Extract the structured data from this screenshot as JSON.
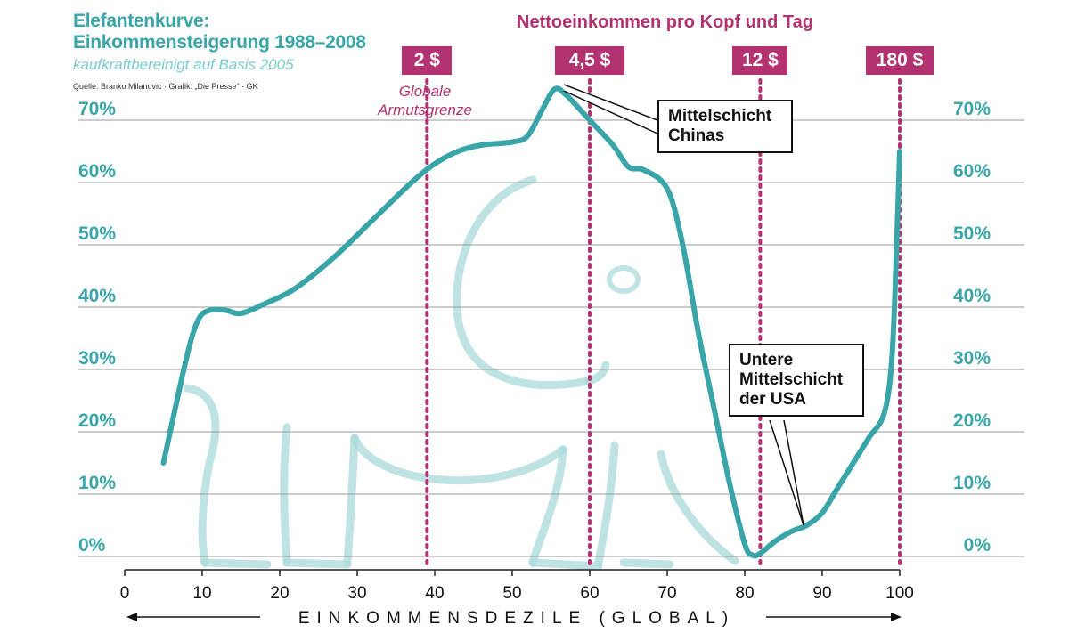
{
  "header": {
    "title_line1": "Elefantenkurve:",
    "title_line2": "Einkommensteigerung 1988–2008",
    "subtitle": "kaufkraftbereinigt auf Basis 2005",
    "source": "Quelle: Branko Milanovic · Grafik: „Die Presse“ · GK"
  },
  "income_header": "Nettoeinkommen pro Kopf und Tag",
  "income_markers": [
    {
      "label": "2 $",
      "x": 39
    },
    {
      "label": "4,5 $",
      "x": 60
    },
    {
      "label": "12 $",
      "x": 82
    },
    {
      "label": "180 $",
      "x": 100
    }
  ],
  "poverty_label": "Globale Armutsgrenze",
  "callouts": {
    "china": "Mittelschicht Chinas",
    "usa": "Untere Mittelschicht der USA"
  },
  "colors": {
    "curve": "#3aa5a8",
    "accent": "#b2336f",
    "elephant": "#a9d9da",
    "grid": "#9a9a9a"
  },
  "chart_data": {
    "type": "line",
    "title": "Elefantenkurve: Einkommensteigerung 1988–2008",
    "subtitle": "kaufkraftbereinigt auf Basis 2005",
    "xlabel": "EINKOMMENSDEZILE (GLOBAL)",
    "ylabel": "",
    "xlim": [
      0,
      100
    ],
    "ylim": [
      0,
      70
    ],
    "xticks": [
      0,
      10,
      20,
      30,
      40,
      50,
      60,
      70,
      80,
      90,
      100
    ],
    "yticks": [
      0,
      10,
      20,
      30,
      40,
      50,
      60,
      70
    ],
    "xtick_labels": [
      "0",
      "10",
      "20",
      "30",
      "40",
      "50",
      "60",
      "70",
      "80",
      "90",
      "100"
    ],
    "ytick_labels": [
      "0%",
      "10%",
      "20%",
      "30%",
      "40%",
      "50%",
      "60%",
      "70%"
    ],
    "grid": true,
    "series": [
      {
        "points": [
          [
            5,
            15
          ],
          [
            8,
            32
          ],
          [
            9.5,
            38
          ],
          [
            11,
            39.5
          ],
          [
            13,
            39.5
          ],
          [
            15,
            39
          ],
          [
            18,
            40.5
          ],
          [
            22,
            43
          ],
          [
            27,
            48
          ],
          [
            32,
            54
          ],
          [
            37,
            60
          ],
          [
            40,
            63
          ],
          [
            43,
            65
          ],
          [
            46,
            66
          ],
          [
            50,
            66.5
          ],
          [
            52,
            67.5
          ],
          [
            54,
            72
          ],
          [
            55.5,
            75
          ],
          [
            57,
            74
          ],
          [
            60,
            70
          ],
          [
            63,
            66
          ],
          [
            65,
            62.5
          ],
          [
            67,
            62
          ],
          [
            70,
            59
          ],
          [
            72,
            50
          ],
          [
            74,
            36
          ],
          [
            76,
            24
          ],
          [
            78,
            12
          ],
          [
            80,
            2
          ],
          [
            81,
            0.2
          ],
          [
            82,
            0.5
          ],
          [
            84,
            2.5
          ],
          [
            86,
            4
          ],
          [
            88,
            5
          ],
          [
            90,
            7
          ],
          [
            92,
            11
          ],
          [
            94,
            15
          ],
          [
            96,
            19
          ],
          [
            98,
            23
          ],
          [
            99,
            32
          ],
          [
            99.6,
            50
          ],
          [
            100,
            65
          ]
        ]
      }
    ]
  }
}
